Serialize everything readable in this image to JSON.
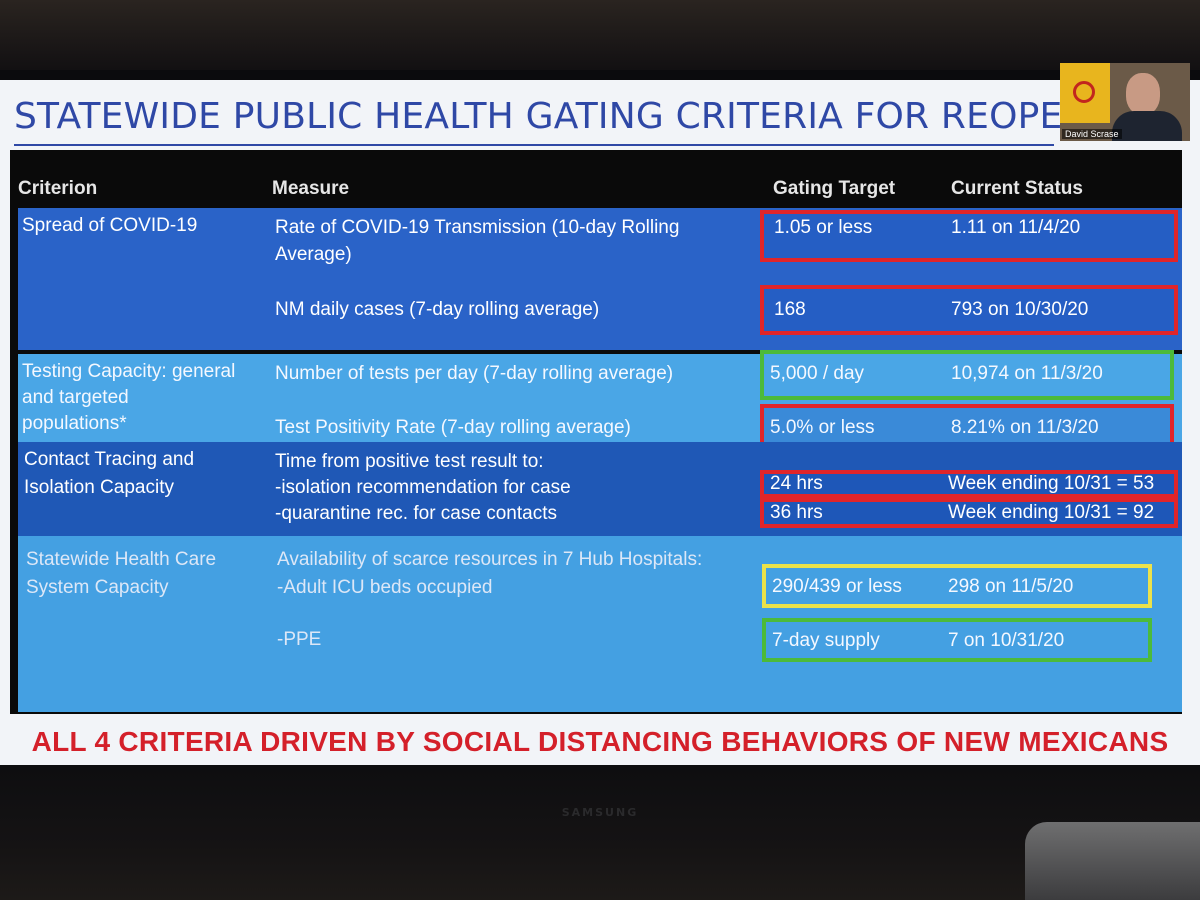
{
  "slide": {
    "title": "STATEWIDE PUBLIC HEALTH GATING CRITERIA FOR REOPENING",
    "headers": {
      "criterion": "Criterion",
      "measure": "Measure",
      "target": "Gating Target",
      "status": "Current Status"
    },
    "rows": [
      {
        "criterion": [
          "Spread of COVID-19"
        ],
        "items": [
          {
            "measure": [
              "Rate of COVID-19 Transmission (10-day Rolling",
              "Average)"
            ],
            "target": "1.05 or less",
            "status": "1.11 on 11/4/20",
            "box_color": "red"
          },
          {
            "measure": [
              "NM daily cases (7-day rolling average)"
            ],
            "target": "168",
            "status": "793 on 10/30/20",
            "box_color": "red"
          }
        ]
      },
      {
        "criterion": [
          "Testing Capacity: general",
          "and targeted",
          "populations*"
        ],
        "items": [
          {
            "measure": [
              "Number of tests per day (7-day rolling average)"
            ],
            "target": "5,000 / day",
            "status": "10,974 on 11/3/20",
            "box_color": "green"
          },
          {
            "measure": [
              "Test Positivity Rate (7-day rolling average)"
            ],
            "target": "5.0% or less",
            "status": "8.21% on 11/3/20",
            "box_color": "red"
          }
        ]
      },
      {
        "criterion": [
          "Contact Tracing and",
          "Isolation Capacity"
        ],
        "measure_lines": [
          "Time from positive test result to:",
          "-isolation recommendation for case",
          "-quarantine rec. for case contacts"
        ],
        "items": [
          {
            "target": "24 hrs",
            "status": "Week ending 10/31 = 53",
            "box_color": "red"
          },
          {
            "target": "36 hrs",
            "status": "Week ending 10/31 = 92",
            "box_color": "red"
          }
        ]
      },
      {
        "criterion": [
          "Statewide Health Care",
          "System Capacity"
        ],
        "measure_lines": [
          "Availability of scarce resources in 7 Hub Hospitals:",
          "-Adult ICU beds occupied"
        ],
        "items": [
          {
            "target": "290/439 or less",
            "status": "298 on 11/5/20",
            "box_color": "yellow"
          },
          {
            "measure": [
              "-PPE"
            ],
            "target": "7-day supply",
            "status": "7  on 10/31/20",
            "box_color": "green"
          }
        ]
      }
    ],
    "banner": "ALL 4 CRITERIA DRIVEN BY SOCIAL DISTANCING BEHAVIORS OF NEW MEXICANS"
  },
  "video_tile": {
    "participant_name": "David Scrase",
    "flag_icon": "new-mexico-flag-icon"
  },
  "tv": {
    "brand": "SAMSUNG"
  },
  "colors": {
    "title_blue": "#2f48a6",
    "row_dark_blue": "#2a63c8",
    "row_light_blue": "#4aa6e6",
    "banner_red": "#d4202a",
    "box_red": "#e0252a",
    "box_green": "#4cba3a",
    "box_yellow": "#ece24a"
  }
}
